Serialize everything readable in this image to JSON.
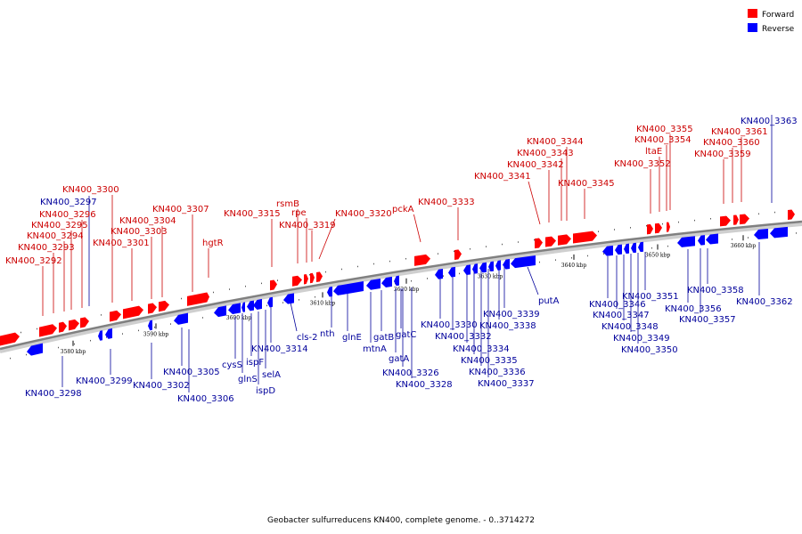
{
  "legend": {
    "forward_label": "Forward",
    "reverse_label": "Reverse",
    "forward_color": "#ff0000",
    "reverse_color": "#0000ff"
  },
  "colors": {
    "forward_text": "#cc0000",
    "reverse_text": "#00009b",
    "backbone": "#808080"
  },
  "caption": "Geobacter sulfurreducens KN400, complete genome. - 0..3714272",
  "ticks": [
    {
      "label": "3580 kbp",
      "pos_kbp": 3580
    },
    {
      "label": "3590 kbp",
      "pos_kbp": 3590
    },
    {
      "label": "3600 kbp",
      "pos_kbp": 3600
    },
    {
      "label": "3610 kbp",
      "pos_kbp": 3610
    },
    {
      "label": "3620 kbp",
      "pos_kbp": 3620
    },
    {
      "label": "3630 kbp",
      "pos_kbp": 3630
    },
    {
      "label": "3640 kbp",
      "pos_kbp": 3640
    },
    {
      "label": "3650 kbp",
      "pos_kbp": 3650
    },
    {
      "label": "3660 kbp",
      "pos_kbp": 3660
    }
  ],
  "forward_labels": [
    "KN400_3292",
    "KN400_3293",
    "KN400_3294",
    "KN400_3295",
    "KN400_3296",
    "KN400_3300",
    "KN400_3301",
    "KN400_3303",
    "KN400_3304",
    "KN400_3307",
    "hgtR",
    "KN400_3315",
    "rsmB",
    "rpe",
    "KN400_3319",
    "KN400_3320",
    "pckA",
    "KN400_3333",
    "KN400_3341",
    "KN400_3342",
    "KN400_3343",
    "KN400_3344",
    "KN400_3345",
    "KN400_3352",
    "ltaE",
    "KN400_3354",
    "KN400_3355",
    "KN400_3359",
    "KN400_3360",
    "KN400_3361"
  ],
  "reverse_labels": [
    "KN400_3297",
    "KN400_3298",
    "KN400_3299",
    "KN400_3302",
    "KN400_3305",
    "KN400_3306",
    "cysS",
    "glnS",
    "ispF",
    "ispD",
    "selA",
    "KN400_3314",
    "cls-2",
    "nth",
    "glnE",
    "mtnA",
    "gatB",
    "gatA",
    "gatC",
    "KN400_3326",
    "KN400_3328",
    "KN400_3330",
    "KN400_3332",
    "KN400_3334",
    "KN400_3335",
    "KN400_3336",
    "KN400_3337",
    "KN400_3338",
    "KN400_3339",
    "putA",
    "KN400_3346",
    "KN400_3347",
    "KN400_3348",
    "KN400_3349",
    "KN400_3350",
    "KN400_3351",
    "KN400_3356",
    "KN400_3357",
    "KN400_3358",
    "KN400_3362",
    "KN400_3363"
  ]
}
